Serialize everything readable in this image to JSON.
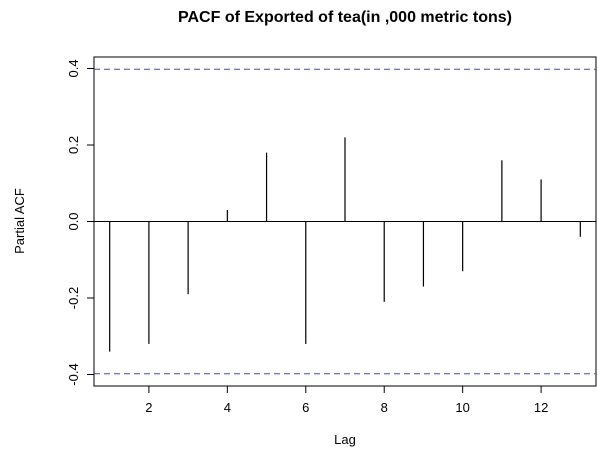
{
  "chart_data": {
    "type": "bar",
    "title": "PACF of Exported of tea(in ,000 metric tons)",
    "xlabel": "Lag",
    "ylabel": "Partial ACF",
    "xlim": [
      0.6,
      13.4
    ],
    "ylim": [
      -0.43,
      0.43
    ],
    "x_ticks": [
      2,
      4,
      6,
      8,
      10,
      12
    ],
    "y_ticks": [
      -0.4,
      -0.2,
      0.0,
      0.2,
      0.4
    ],
    "confidence_bounds": [
      0.398,
      -0.398
    ],
    "x": [
      1,
      2,
      3,
      4,
      5,
      6,
      7,
      8,
      9,
      10,
      11,
      12,
      13
    ],
    "values": [
      -0.34,
      -0.32,
      -0.19,
      0.03,
      0.18,
      -0.32,
      0.22,
      -0.21,
      -0.17,
      -0.13,
      0.16,
      0.11,
      -0.04
    ],
    "colors": {
      "bars": "#000000",
      "zero_line": "#000000",
      "confidence": "#4a4aa8",
      "frame": "#000000"
    }
  }
}
